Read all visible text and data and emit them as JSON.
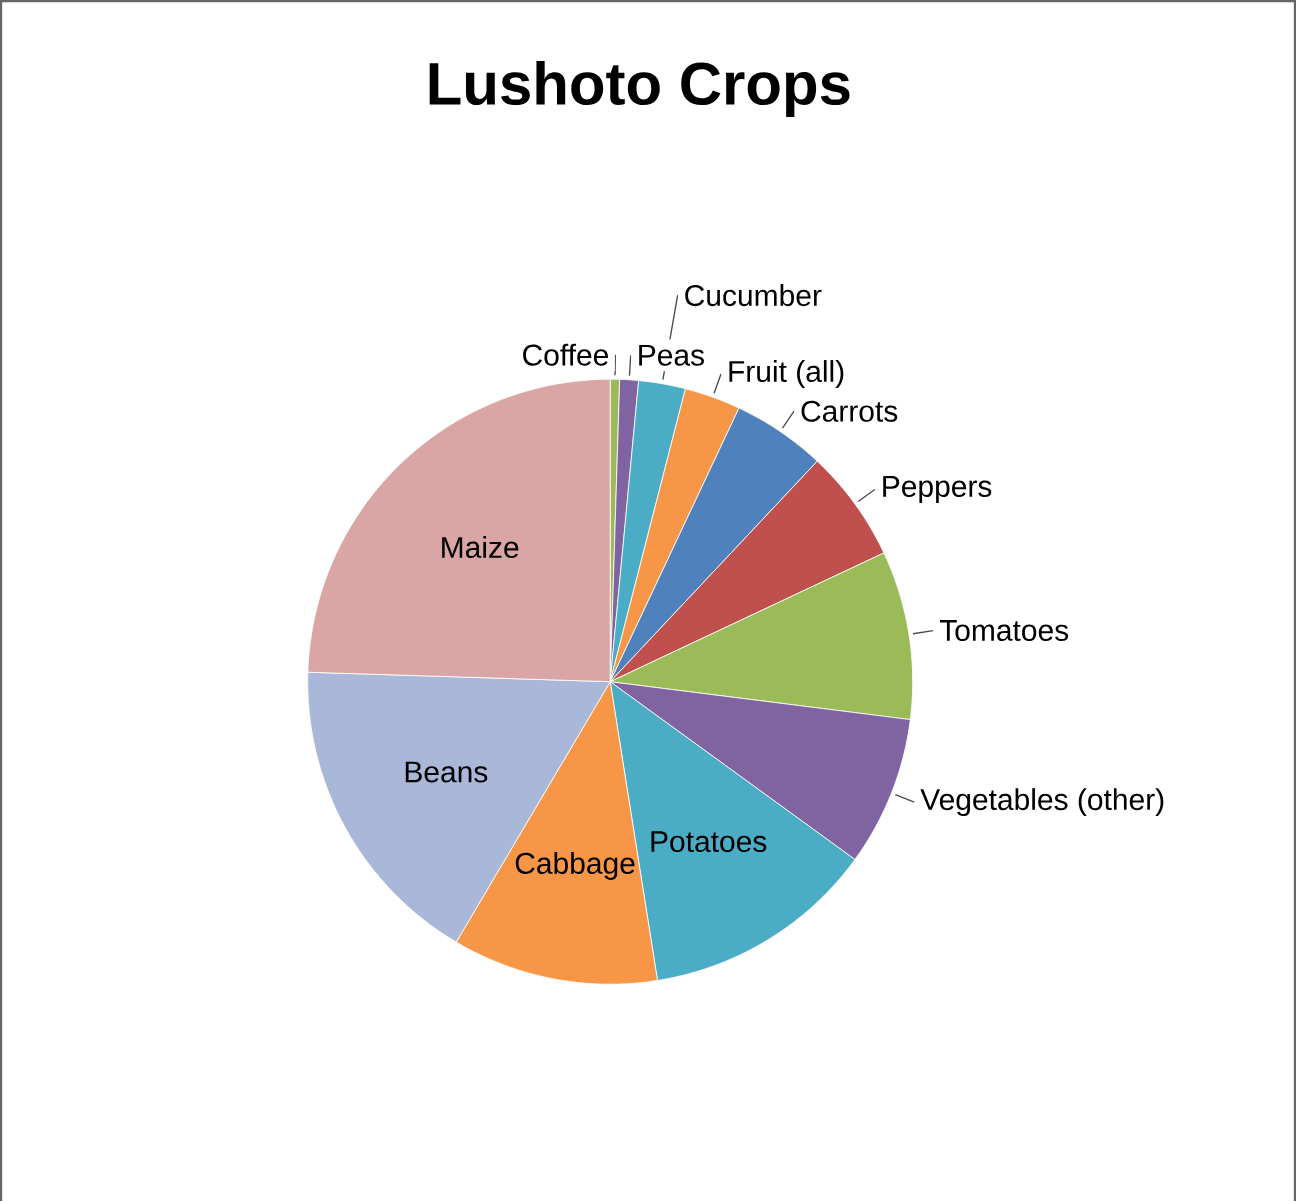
{
  "chart_data": {
    "type": "pie",
    "title": "Lushoto Crops",
    "categories": [
      "Coffee",
      "Peas",
      "Cucumber",
      "Fruit (all)",
      "Carrots",
      "Peppers",
      "Tomatoes",
      "Vegetables (other)",
      "Potatoes",
      "Cabbage",
      "Beans",
      "Maize"
    ],
    "values": [
      0.5,
      1,
      2.5,
      3,
      5,
      6,
      9,
      8,
      12.5,
      11,
      17,
      24.5
    ],
    "colors": [
      "#9bbb59",
      "#8064a2",
      "#4bacc6",
      "#f79646",
      "#4f81bd",
      "#c0504d",
      "#9bbb59",
      "#8064a2",
      "#4bacc6",
      "#f79646",
      "#a9b8d8",
      "#d9a6a5"
    ]
  }
}
